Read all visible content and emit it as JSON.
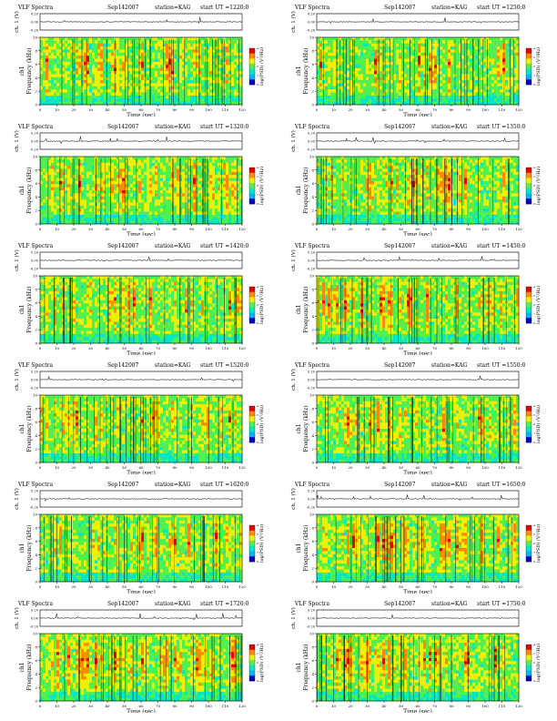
{
  "labels": {
    "title": "VLF Spectra",
    "voltage_axis": "ch. 1 (V)",
    "freq_axis_line1": "ch1",
    "freq_axis_line2": "Frequency (kHz)",
    "time_axis": "Time (sec)",
    "colorbar_label": "log(PSD) (V²/Hz)"
  },
  "panels": [
    {
      "date": "Sep142007",
      "station": "station=KAG",
      "start": "start UT =1220:0"
    },
    {
      "date": "Sep142007",
      "station": "station=KAG",
      "start": "start UT =1250:0"
    },
    {
      "date": "Sep142007",
      "station": "station=KAG",
      "start": "start UT =1320:0"
    },
    {
      "date": "Sep142007",
      "station": "station=KAG",
      "start": "start UT =1350:0"
    },
    {
      "date": "Sep142007",
      "station": "station=KAG",
      "start": "start UT =1420:0"
    },
    {
      "date": "Sep142007",
      "station": "station=KAG",
      "start": "start UT =1450:0"
    },
    {
      "date": "Sep142007",
      "station": "station=KAG",
      "start": "start UT =1520:0"
    },
    {
      "date": "Sep142007",
      "station": "station=KAG",
      "start": "start UT =1550:0"
    },
    {
      "date": "Sep142007",
      "station": "station=KAG",
      "start": "start UT =1620:0"
    },
    {
      "date": "Sep142007",
      "station": "station=KAG",
      "start": "start UT =1650:0"
    },
    {
      "date": "Sep142007",
      "station": "station=KAG",
      "start": "start UT =1720:0"
    },
    {
      "date": "Sep142007",
      "station": "station=KAG",
      "start": "start UT =1750:0"
    }
  ],
  "chart_data": {
    "type": "heatmap",
    "xlabel": "Time (sec)",
    "ylabel": "Frequency (kHz)",
    "xlim": [
      0,
      120
    ],
    "ylim": [
      0,
      10
    ],
    "x_ticks": [
      0,
      10,
      20,
      30,
      40,
      50,
      60,
      70,
      80,
      90,
      100,
      110,
      120
    ],
    "y_ticks": [
      0,
      2,
      4,
      6,
      8,
      10
    ],
    "voltage_ticks": [
      "0.20",
      "0.00",
      "-0.20"
    ],
    "voltage_ylim": [
      -0.2,
      0.2
    ],
    "colorbar_label": "log(PSD) (V²/Hz)",
    "colorbar_ticks": [
      -8,
      -7,
      -6,
      -5,
      -4
    ],
    "colormap": [
      "#0000c8",
      "#00b4ff",
      "#00e6c8",
      "#50f050",
      "#f0f000",
      "#ff8c00",
      "#e60000"
    ]
  }
}
